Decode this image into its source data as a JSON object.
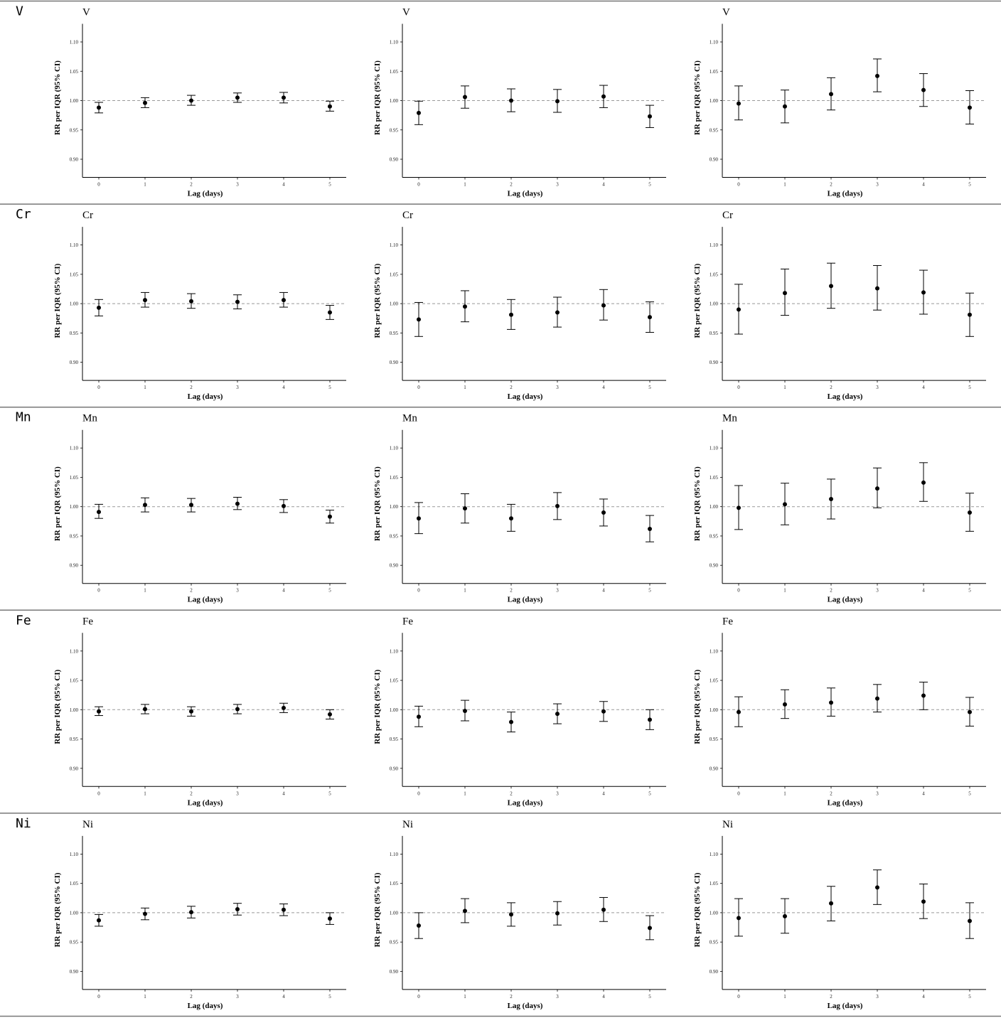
{
  "xlabel": "Lag (days)",
  "ylabel": "RR per IQR (95% CI)",
  "chart_data": [
    {
      "type": "scatter",
      "row_label": "V",
      "title": "V",
      "column": 1,
      "x": [
        0,
        1,
        2,
        3,
        4,
        5
      ],
      "y": [
        0.988,
        0.996,
        1.0,
        1.005,
        1.005,
        0.99
      ],
      "lower": [
        0.979,
        0.988,
        0.992,
        0.997,
        0.996,
        0.982
      ],
      "upper": [
        0.997,
        1.005,
        1.009,
        1.013,
        1.014,
        0.999
      ],
      "yticks": [
        "0.90",
        "0.95",
        "1.00",
        "1.05",
        "1.10"
      ],
      "xticks": [
        "0",
        "1",
        "2",
        "3",
        "4",
        "5"
      ],
      "ylim": [
        0.87,
        1.13
      ],
      "reference_line": 1.0
    },
    {
      "type": "scatter",
      "row_label": "V",
      "title": "V",
      "column": 2,
      "x": [
        0,
        1,
        2,
        3,
        4,
        5
      ],
      "y": [
        0.979,
        1.006,
        1.0,
        0.999,
        1.007,
        0.973
      ],
      "lower": [
        0.959,
        0.987,
        0.981,
        0.98,
        0.988,
        0.954
      ],
      "upper": [
        0.999,
        1.025,
        1.02,
        1.019,
        1.026,
        0.992
      ],
      "yticks": [
        "0.90",
        "0.95",
        "1.00",
        "1.05",
        "1.10"
      ],
      "xticks": [
        "0",
        "1",
        "2",
        "3",
        "4",
        "5"
      ],
      "ylim": [
        0.87,
        1.13
      ],
      "reference_line": 1.0
    },
    {
      "type": "scatter",
      "row_label": "V",
      "title": "V",
      "column": 3,
      "x": [
        0,
        1,
        2,
        3,
        4,
        5
      ],
      "y": [
        0.995,
        0.99,
        1.011,
        1.042,
        1.018,
        0.988
      ],
      "lower": [
        0.967,
        0.962,
        0.984,
        1.015,
        0.99,
        0.96
      ],
      "upper": [
        1.025,
        1.018,
        1.039,
        1.071,
        1.046,
        1.017
      ],
      "yticks": [
        "0.90",
        "0.95",
        "1.00",
        "1.05",
        "1.10"
      ],
      "xticks": [
        "0",
        "1",
        "2",
        "3",
        "4",
        "5"
      ],
      "ylim": [
        0.87,
        1.13
      ],
      "reference_line": 1.0
    },
    {
      "type": "scatter",
      "row_label": "Cr",
      "title": "Cr",
      "column": 1,
      "x": [
        0,
        1,
        2,
        3,
        4,
        5
      ],
      "y": [
        0.993,
        1.006,
        1.004,
        1.003,
        1.006,
        0.985
      ],
      "lower": [
        0.979,
        0.994,
        0.992,
        0.991,
        0.994,
        0.973
      ],
      "upper": [
        1.007,
        1.019,
        1.017,
        1.015,
        1.019,
        0.997
      ],
      "yticks": [
        "0.90",
        "0.95",
        "1.00",
        "1.05",
        "1.10"
      ],
      "xticks": [
        "0",
        "1",
        "2",
        "3",
        "4",
        "5"
      ],
      "ylim": [
        0.87,
        1.13
      ],
      "reference_line": 1.0
    },
    {
      "type": "scatter",
      "row_label": "Cr",
      "title": "Cr",
      "column": 2,
      "x": [
        0,
        1,
        2,
        3,
        4,
        5
      ],
      "y": [
        0.973,
        0.995,
        0.981,
        0.985,
        0.997,
        0.977
      ],
      "lower": [
        0.944,
        0.969,
        0.956,
        0.96,
        0.972,
        0.951
      ],
      "upper": [
        1.002,
        1.022,
        1.007,
        1.011,
        1.024,
        1.003
      ],
      "yticks": [
        "0.90",
        "0.95",
        "1.00",
        "1.05",
        "1.10"
      ],
      "xticks": [
        "0",
        "1",
        "2",
        "3",
        "4",
        "5"
      ],
      "ylim": [
        0.87,
        1.13
      ],
      "reference_line": 1.0
    },
    {
      "type": "scatter",
      "row_label": "Cr",
      "title": "Cr",
      "column": 3,
      "x": [
        0,
        1,
        2,
        3,
        4,
        5
      ],
      "y": [
        0.99,
        1.018,
        1.03,
        1.026,
        1.019,
        0.981
      ],
      "lower": [
        0.948,
        0.98,
        0.992,
        0.989,
        0.982,
        0.944
      ],
      "upper": [
        1.033,
        1.059,
        1.069,
        1.065,
        1.057,
        1.018
      ],
      "yticks": [
        "0.90",
        "0.95",
        "1.00",
        "1.05",
        "1.10"
      ],
      "xticks": [
        "0",
        "1",
        "2",
        "3",
        "4",
        "5"
      ],
      "ylim": [
        0.87,
        1.13
      ],
      "reference_line": 1.0
    },
    {
      "type": "scatter",
      "row_label": "Mn",
      "title": "Mn",
      "column": 1,
      "x": [
        0,
        1,
        2,
        3,
        4,
        5
      ],
      "y": [
        0.991,
        1.003,
        1.003,
        1.005,
        1.001,
        0.983
      ],
      "lower": [
        0.98,
        0.991,
        0.991,
        0.995,
        0.99,
        0.972
      ],
      "upper": [
        1.004,
        1.015,
        1.014,
        1.016,
        1.012,
        0.994
      ],
      "yticks": [
        "0.90",
        "0.95",
        "1.00",
        "1.05",
        "1.10"
      ],
      "xticks": [
        "0",
        "1",
        "2",
        "3",
        "4",
        "5"
      ],
      "ylim": [
        0.87,
        1.13
      ],
      "reference_line": 1.0
    },
    {
      "type": "scatter",
      "row_label": "Mn",
      "title": "Mn",
      "column": 2,
      "x": [
        0,
        1,
        2,
        3,
        4,
        5
      ],
      "y": [
        0.98,
        0.997,
        0.98,
        1.001,
        0.99,
        0.962
      ],
      "lower": [
        0.954,
        0.972,
        0.958,
        0.978,
        0.967,
        0.94
      ],
      "upper": [
        1.007,
        1.022,
        1.004,
        1.024,
        1.013,
        0.985
      ],
      "yticks": [
        "0.90",
        "0.95",
        "1.00",
        "1.05",
        "1.10"
      ],
      "xticks": [
        "0",
        "1",
        "2",
        "3",
        "4",
        "5"
      ],
      "ylim": [
        0.87,
        1.13
      ],
      "reference_line": 1.0
    },
    {
      "type": "scatter",
      "row_label": "Mn",
      "title": "Mn",
      "column": 3,
      "x": [
        0,
        1,
        2,
        3,
        4,
        5
      ],
      "y": [
        0.998,
        1.004,
        1.013,
        1.031,
        1.041,
        0.99
      ],
      "lower": [
        0.961,
        0.969,
        0.979,
        0.998,
        1.009,
        0.958
      ],
      "upper": [
        1.036,
        1.04,
        1.047,
        1.066,
        1.075,
        1.023
      ],
      "yticks": [
        "0.90",
        "0.95",
        "1.00",
        "1.05",
        "1.10"
      ],
      "xticks": [
        "0",
        "1",
        "2",
        "3",
        "4",
        "5"
      ],
      "ylim": [
        0.87,
        1.13
      ],
      "reference_line": 1.0
    },
    {
      "type": "scatter",
      "row_label": "Fe",
      "title": "Fe",
      "column": 1,
      "x": [
        0,
        1,
        2,
        3,
        4,
        5
      ],
      "y": [
        0.997,
        1.001,
        0.997,
        1.001,
        1.003,
        0.992
      ],
      "lower": [
        0.99,
        0.993,
        0.989,
        0.993,
        0.995,
        0.984
      ],
      "upper": [
        1.005,
        1.009,
        1.005,
        1.009,
        1.011,
        1.0
      ],
      "yticks": [
        "0.90",
        "0.95",
        "1.00",
        "1.05",
        "1.10"
      ],
      "xticks": [
        "0",
        "1",
        "2",
        "3",
        "4",
        "5"
      ],
      "ylim": [
        0.87,
        1.13
      ],
      "reference_line": 1.0
    },
    {
      "type": "scatter",
      "row_label": "Fe",
      "title": "Fe",
      "column": 2,
      "x": [
        0,
        1,
        2,
        3,
        4,
        5
      ],
      "y": [
        0.988,
        0.998,
        0.979,
        0.993,
        0.997,
        0.983
      ],
      "lower": [
        0.971,
        0.981,
        0.962,
        0.976,
        0.98,
        0.966
      ],
      "upper": [
        1.006,
        1.016,
        0.996,
        1.01,
        1.014,
        1.0
      ],
      "yticks": [
        "0.90",
        "0.95",
        "1.00",
        "1.05",
        "1.10"
      ],
      "xticks": [
        "0",
        "1",
        "2",
        "3",
        "4",
        "5"
      ],
      "ylim": [
        0.87,
        1.13
      ],
      "reference_line": 1.0
    },
    {
      "type": "scatter",
      "row_label": "Fe",
      "title": "Fe",
      "column": 3,
      "x": [
        0,
        1,
        2,
        3,
        4,
        5
      ],
      "y": [
        0.996,
        1.009,
        1.012,
        1.019,
        1.024,
        0.996
      ],
      "lower": [
        0.971,
        0.985,
        0.989,
        0.996,
        1.0,
        0.972
      ],
      "upper": [
        1.022,
        1.034,
        1.037,
        1.043,
        1.047,
        1.021
      ],
      "yticks": [
        "0.90",
        "0.95",
        "1.00",
        "1.05",
        "1.10"
      ],
      "xticks": [
        "0",
        "1",
        "2",
        "3",
        "4",
        "5"
      ],
      "ylim": [
        0.87,
        1.13
      ],
      "reference_line": 1.0
    },
    {
      "type": "scatter",
      "row_label": "Ni",
      "title": "Ni",
      "column": 1,
      "x": [
        0,
        1,
        2,
        3,
        4,
        5
      ],
      "y": [
        0.987,
        0.998,
        1.001,
        1.006,
        1.005,
        0.99
      ],
      "lower": [
        0.977,
        0.988,
        0.991,
        0.996,
        0.995,
        0.98
      ],
      "upper": [
        0.997,
        1.008,
        1.011,
        1.016,
        1.015,
        1.0
      ],
      "yticks": [
        "0.90",
        "0.95",
        "1.00",
        "1.05",
        "1.10"
      ],
      "xticks": [
        "0",
        "1",
        "2",
        "3",
        "4",
        "5"
      ],
      "ylim": [
        0.87,
        1.13
      ],
      "reference_line": 1.0
    },
    {
      "type": "scatter",
      "row_label": "Ni",
      "title": "Ni",
      "column": 2,
      "x": [
        0,
        1,
        2,
        3,
        4,
        5
      ],
      "y": [
        0.978,
        1.003,
        0.997,
        0.999,
        1.005,
        0.974
      ],
      "lower": [
        0.956,
        0.983,
        0.977,
        0.979,
        0.985,
        0.954
      ],
      "upper": [
        1.0,
        1.024,
        1.017,
        1.019,
        1.026,
        0.995
      ],
      "yticks": [
        "0.90",
        "0.95",
        "1.00",
        "1.05",
        "1.10"
      ],
      "xticks": [
        "0",
        "1",
        "2",
        "3",
        "4",
        "5"
      ],
      "ylim": [
        0.87,
        1.13
      ],
      "reference_line": 1.0
    },
    {
      "type": "scatter",
      "row_label": "Ni",
      "title": "Ni",
      "column": 3,
      "x": [
        0,
        1,
        2,
        3,
        4,
        5
      ],
      "y": [
        0.991,
        0.994,
        1.016,
        1.043,
        1.019,
        0.986
      ],
      "lower": [
        0.96,
        0.965,
        0.986,
        1.014,
        0.99,
        0.956
      ],
      "upper": [
        1.024,
        1.024,
        1.045,
        1.073,
        1.049,
        1.017
      ],
      "yticks": [
        "0.90",
        "0.95",
        "1.00",
        "1.05",
        "1.10"
      ],
      "xticks": [
        "0",
        "1",
        "2",
        "3",
        "4",
        "5"
      ],
      "ylim": [
        0.87,
        1.13
      ],
      "reference_line": 1.0
    }
  ]
}
